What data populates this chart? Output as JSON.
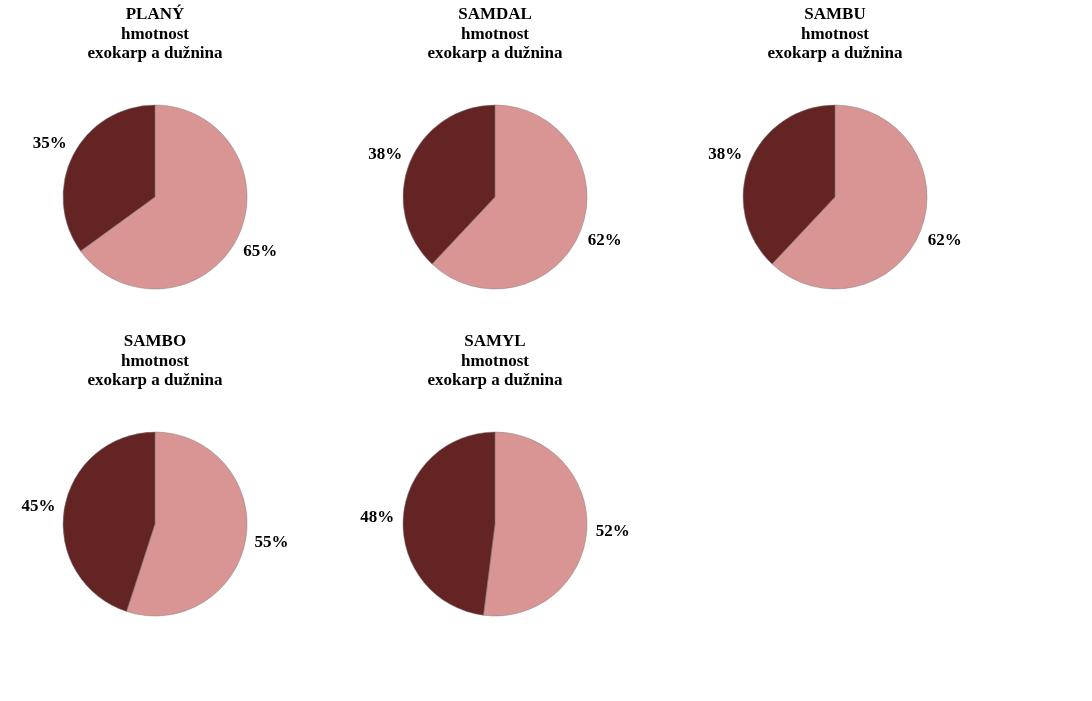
{
  "chart_data": [
    {
      "type": "pie",
      "title": "PLANÝ",
      "subtitle": "hmotnost\nexokarp a dužnina",
      "categories": [
        null,
        null
      ],
      "values": [
        65,
        35
      ],
      "value_labels": [
        "65%",
        "35%"
      ],
      "colors": [
        "#d99594",
        "#632423"
      ],
      "legend": false
    },
    {
      "type": "pie",
      "title": "SAMDAL",
      "subtitle": "hmotnost\nexokarp a dužnina",
      "categories": [
        null,
        null
      ],
      "values": [
        62,
        38
      ],
      "value_labels": [
        "62%",
        "38%"
      ],
      "colors": [
        "#d99594",
        "#632423"
      ],
      "legend": false
    },
    {
      "type": "pie",
      "title": "SAMBU",
      "subtitle": "hmotnost\nexokarp a dužnina",
      "categories": [
        null,
        null
      ],
      "values": [
        62,
        38
      ],
      "value_labels": [
        "62%",
        "38%"
      ],
      "colors": [
        "#d99594",
        "#632423"
      ],
      "legend": false
    },
    {
      "type": "pie",
      "title": "SAMBO",
      "subtitle": "hmotnost\nexokarp a dužnina",
      "categories": [
        null,
        null
      ],
      "values": [
        55,
        45
      ],
      "value_labels": [
        "55%",
        "45%"
      ],
      "colors": [
        "#d99594",
        "#632423"
      ],
      "legend": false
    },
    {
      "type": "pie",
      "title": "SAMYL",
      "subtitle": "hmotnost\nexokarp a dužnina",
      "categories": [
        null,
        null
      ],
      "values": [
        52,
        48
      ],
      "value_labels": [
        "52%",
        "48%"
      ],
      "colors": [
        "#d99594",
        "#632423"
      ],
      "legend": false
    }
  ]
}
